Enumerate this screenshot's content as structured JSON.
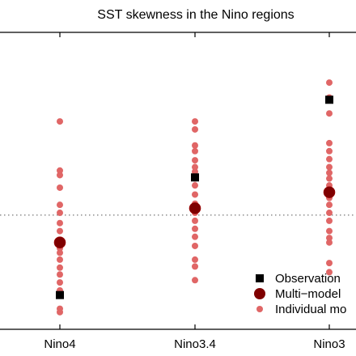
{
  "chart_data": {
    "type": "scatter",
    "title": "SST skewness in the Nino regions",
    "categories": [
      "Nino4",
      "Nino3.4",
      "Nino3"
    ],
    "ylim": [
      -1.0,
      1.6
    ],
    "reference_line_y": 0.0,
    "reference_line_style": "dotted",
    "legend": {
      "placement": "bottom-right",
      "entries": [
        {
          "name": "Observation",
          "marker": "square",
          "color": "#000000"
        },
        {
          "name": "Multi−model",
          "marker": "large-circle",
          "color": "#7f0000"
        },
        {
          "name": "Individual mo",
          "marker": "small-circle",
          "color": "#e06666"
        }
      ]
    },
    "series": [
      {
        "name": "Individual mo",
        "color": "#e06666",
        "points": [
          {
            "category": "Nino4",
            "values": [
              0.82,
              0.39,
              0.35,
              0.24,
              0.09,
              0.02,
              -0.07,
              -0.14,
              -0.23,
              -0.29,
              -0.33,
              -0.39,
              -0.46,
              -0.52,
              -0.59,
              -0.66,
              -0.82,
              -0.85
            ]
          },
          {
            "category": "Nino3.4",
            "values": [
              0.82,
              0.75,
              0.61,
              0.56,
              0.48,
              0.42,
              0.38,
              0.32,
              0.26,
              0.18,
              0.1,
              0.02,
              -0.05,
              -0.12,
              -0.19,
              -0.27,
              -0.39,
              -0.45,
              -0.57
            ]
          },
          {
            "category": "Nino3",
            "values": [
              1.16,
              1.03,
              0.89,
              0.63,
              0.56,
              0.49,
              0.42,
              0.37,
              0.32,
              0.26,
              0.21,
              0.15,
              0.09,
              0.02,
              -0.05,
              -0.14,
              -0.2,
              -0.24,
              -0.42,
              -0.5
            ]
          }
        ]
      },
      {
        "name": "Observation",
        "color": "#000000",
        "points": [
          {
            "category": "Nino4",
            "value": -0.7
          },
          {
            "category": "Nino3.4",
            "value": 0.33
          },
          {
            "category": "Nino3",
            "value": 1.01
          }
        ]
      },
      {
        "name": "Multi−model",
        "color": "#7f0000",
        "points": [
          {
            "category": "Nino4",
            "value": -0.24
          },
          {
            "category": "Nino3.4",
            "value": 0.06
          },
          {
            "category": "Nino3",
            "value": 0.2
          }
        ]
      }
    ]
  }
}
